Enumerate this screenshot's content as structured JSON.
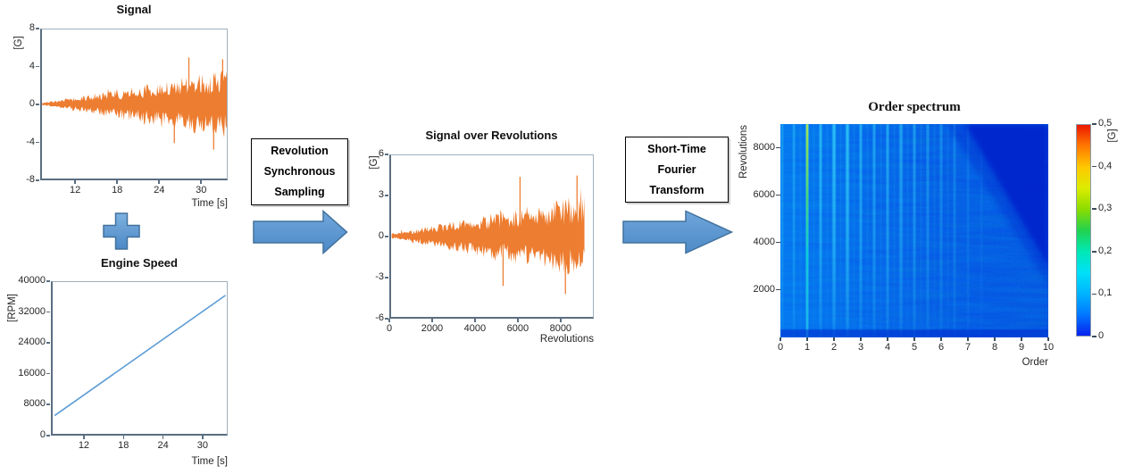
{
  "flow": {
    "plus_icon": "plus-icon",
    "arrows": {
      "icon": "arrow-right-icon",
      "fill": "#5B9BD5",
      "border": "#41719C"
    },
    "box1": {
      "lines": [
        "Revolution",
        "Synchronous",
        "Sampling"
      ]
    },
    "box2": {
      "lines": [
        "Short-Time",
        "Fourier",
        "Transform"
      ]
    }
  },
  "chart_data": [
    {
      "id": "signal",
      "type": "line",
      "title": "Signal",
      "xlabel": "Time [s]",
      "ylabel": "[G]",
      "xlim": [
        7,
        33.8
      ],
      "ylim": [
        -8,
        8
      ],
      "xticks": [
        12,
        18,
        24,
        30
      ],
      "yticks": [
        8,
        4,
        0,
        -4,
        -8
      ],
      "grid": false,
      "legend": false,
      "series": [
        {
          "name": "vibration-signal",
          "kind": "noise-envelope",
          "color": "#ED7D31",
          "x_start": 7,
          "x_end": 33.8,
          "amp_start": 0.15,
          "amp_end": 3.7,
          "seed": 11,
          "spikes": [
            [
              28.3,
              5.0
            ],
            [
              31.9,
              -4.9
            ],
            [
              33.2,
              4.8
            ],
            [
              26.2,
              -4.2
            ]
          ]
        }
      ]
    },
    {
      "id": "engine-speed",
      "type": "line",
      "title": "Engine Speed",
      "xlabel": "Time [s]",
      "ylabel": "[RPM]",
      "xlim": [
        7,
        33.8
      ],
      "ylim": [
        0,
        40000
      ],
      "xticks": [
        12,
        18,
        24,
        30
      ],
      "yticks": [
        40000,
        32000,
        24000,
        16000,
        8000,
        0
      ],
      "grid": false,
      "legend": false,
      "series": [
        {
          "name": "engine-speed-ramp",
          "kind": "line",
          "color": "#5B9BD5",
          "points": [
            [
              7.3,
              4800
            ],
            [
              33.6,
              36500
            ]
          ]
        }
      ]
    },
    {
      "id": "signal-over-revolutions",
      "type": "line",
      "title": "Signal over Revolutions",
      "xlabel": "Revolutions",
      "ylabel": "[G]",
      "xlim": [
        0,
        9550
      ],
      "ylim": [
        -6,
        6
      ],
      "xticks": [
        0,
        2000,
        4000,
        6000,
        8000
      ],
      "yticks": [
        6,
        3,
        0,
        -3,
        -6
      ],
      "grid": false,
      "legend": false,
      "series": [
        {
          "name": "resampled-signal",
          "kind": "noise-envelope",
          "color": "#ED7D31",
          "x_start": 30,
          "x_end": 9150,
          "amp_start": 0.2,
          "amp_end": 3.1,
          "seed": 77,
          "spikes": [
            [
              6100,
              4.4
            ],
            [
              8250,
              -4.3
            ],
            [
              8800,
              4.5
            ],
            [
              5300,
              -3.7
            ]
          ]
        }
      ]
    },
    {
      "id": "order-spectrum",
      "type": "heatmap",
      "title": "Order spectrum",
      "xlabel": "Order",
      "ylabel": "Revolutions",
      "xlim": [
        0,
        10
      ],
      "ylim": [
        0,
        9000
      ],
      "xticks": [
        0,
        1,
        2,
        3,
        4,
        5,
        6,
        7,
        8,
        9,
        10
      ],
      "yticks": [
        8000,
        6000,
        4000,
        2000
      ],
      "value_range": [
        0,
        0.5
      ],
      "background": {
        "left": "#0B44EE",
        "right": "#0A2EDE",
        "shadow": "#0521CC",
        "streak": "#38D9F8"
      },
      "order_streaks": [
        [
          0.07,
          0.5,
          2
        ],
        [
          0.5,
          0.5,
          2.5
        ],
        [
          1,
          1,
          3
        ],
        [
          1.5,
          0.7,
          3
        ],
        [
          2,
          0.8,
          3.5
        ],
        [
          2.5,
          0.8,
          3.5
        ],
        [
          3,
          0.62,
          3
        ],
        [
          3.5,
          0.55,
          3
        ],
        [
          4,
          0.6,
          3
        ],
        [
          4.5,
          0.55,
          3.5
        ],
        [
          5,
          0.5,
          3
        ],
        [
          5.5,
          0.42,
          3
        ],
        [
          6,
          0.36,
          3
        ],
        [
          6.5,
          0.3,
          3
        ],
        [
          7,
          0.22,
          2.5
        ],
        [
          7.5,
          0.13,
          2.5
        ]
      ],
      "hot_streak_order": 1,
      "minor_streaks": [
        0.75,
        1.25,
        1.75,
        2.25,
        2.75,
        3.25,
        3.75,
        4.25,
        4.75,
        5.25,
        5.75,
        6.25
      ],
      "nyquist_shadow": [
        [
          6.9,
          9000
        ],
        [
          10,
          9000
        ],
        [
          10,
          3000
        ]
      ],
      "nyquist_halo": [
        [
          6.2,
          9000
        ],
        [
          10,
          9000
        ],
        [
          10,
          2200
        ]
      ],
      "colorbar": {
        "label": "[G]",
        "ticks": [
          {
            "label": "0,5",
            "value": 0.5
          },
          {
            "label": "0,4",
            "value": 0.4
          },
          {
            "label": "0,3",
            "value": 0.3
          },
          {
            "label": "0,2",
            "value": 0.2
          },
          {
            "label": "0,1",
            "value": 0.1
          },
          {
            "label": "0",
            "value": 0
          }
        ],
        "gradient": [
          "#0822EE",
          "#0078FF",
          "#00B4FF",
          "#00E0F8",
          "#00E8B4",
          "#22D24E",
          "#8CDC00",
          "#DCEC00",
          "#FFC800",
          "#FF7800",
          "#EC1800"
        ]
      }
    }
  ]
}
